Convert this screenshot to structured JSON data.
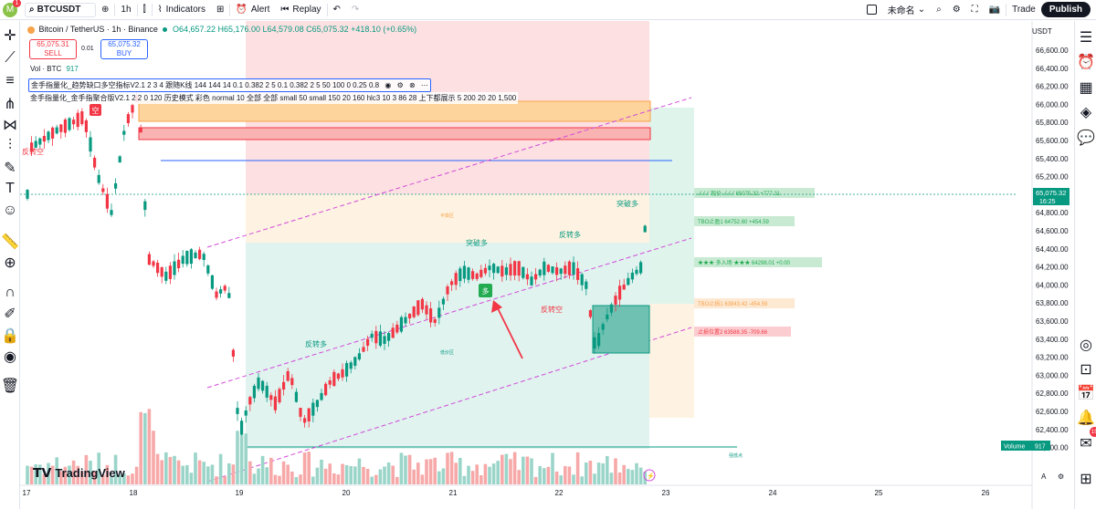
{
  "topbar": {
    "avatar_letter": "M",
    "avatar_badge": "1",
    "symbol": "BTCUSDT",
    "timeframe": "1h",
    "indicators_label": "Indicators",
    "alert_label": "Alert",
    "replay_label": "Replay",
    "layout_name": "未命名",
    "trade_label": "Trade",
    "publish_label": "Publish"
  },
  "legend": {
    "title": "Bitcoin / TetherUS · 1h · Binance",
    "ohlc": "O64,657.22 H65,176.00 L64,579.08 C65,075.32 +418.10 (+0.65%)"
  },
  "sell_box": {
    "price": "65,075.31",
    "label": "SELL"
  },
  "buy_box": {
    "price": "65,075.32",
    "label": "BUY"
  },
  "spread": "0.01",
  "vol_legend": {
    "label": "Vol · BTC",
    "value": "917"
  },
  "indicators": [
    "金手指量化_趋势缺口多空指标V2.1 2 3 4 跟随K线 144 144 14 0.1 0.382 2 5 0.1 0.382 2 5 50 100 0 0.25 0.8",
    "金手指量化_金手指聚合版V2.1 2 2 0 120 历史模式 彩色 normal 10 全部 全部 small 50 small 150 20 160 hlc3 10 3 86 28 上下都展示 5 200 20 20 1,500"
  ],
  "price_axis": {
    "currency": "USDT",
    "ticks": [
      "66,400.00",
      "66,200.00",
      "66,000.00",
      "65,800.00",
      "65,600.00",
      "65,400.00",
      "65,200.00",
      "64,800.00",
      "64,600.00",
      "64,400.00",
      "64,200.00",
      "64,000.00",
      "63,800.00",
      "63,600.00",
      "63,400.00",
      "63,200.00",
      "63,000.00",
      "62,800.00",
      "62,600.00",
      "62,400.00",
      "62,200.00"
    ],
    "top_tick": "66,600.00",
    "current_price": "65,075.32",
    "countdown": "16:25",
    "volume_label": "Volume",
    "volume_value": "917"
  },
  "time_axis": [
    "17",
    "18",
    "19",
    "20",
    "21",
    "22",
    "23",
    "24",
    "25",
    "26"
  ],
  "chart_labels": {
    "reverse_short_left": "反转空",
    "short_badge": "空",
    "long_badge": "多",
    "reverse_long_1": "反转多",
    "breakout_long_1": "突破多",
    "reverse_long_2": "反转多",
    "reverse_short_mid": "反转空",
    "breakout_long_2": "突破多",
    "low_point": "低价区",
    "balance": "平衡区",
    "strong_low": "强低点"
  },
  "position_labels": {
    "current_price": "✓✓✓ 现价 ✓✓✓ 65075.32 +777.31",
    "tp1": "TBO止盈1 64752.60 +454.59",
    "entry": "★★★ 多入场 ★★★ 64298.01 +0.00",
    "stop1": "TBO止损1 63843.42 -454.59",
    "stop2": "止损位置2 63588.35 -709.66"
  },
  "brand": "TradingView",
  "colors": {
    "up": "#089981",
    "down": "#f23645",
    "brand_blue": "#2962ff"
  }
}
